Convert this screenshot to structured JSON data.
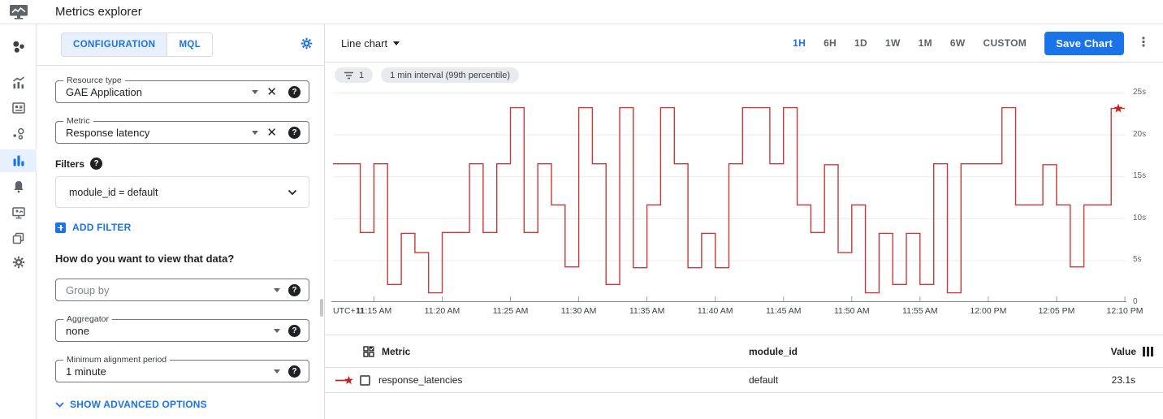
{
  "colors": {
    "accent": "#1a73e8",
    "line": "#c5221f",
    "chip_bg": "#e8eaed",
    "tab_bg": "#e8f0fe"
  },
  "header": {
    "title": "Metrics explorer"
  },
  "sidebar": {
    "icons": [
      "monitoring-overview-icon",
      "metrics-chart-icon",
      "dashboards-icon",
      "services-icon",
      "metrics-explorer-icon",
      "alerting-bell-icon",
      "uptime-monitor-icon",
      "groups-icon",
      "settings-gear-icon"
    ],
    "selected": "metrics-explorer-icon"
  },
  "config_panel": {
    "tabs": [
      {
        "label": "CONFIGURATION",
        "active": true
      },
      {
        "label": "MQL",
        "active": false
      }
    ],
    "resource_type": {
      "label": "Resource type",
      "value": "GAE Application"
    },
    "metric": {
      "label": "Metric",
      "value": "Response latency"
    },
    "filters_label": "Filters",
    "filter_value": "module_id = default",
    "add_filter_label": "ADD FILTER",
    "view_question": "How do you want to view that data?",
    "group_by": {
      "placeholder": "Group by"
    },
    "aggregator": {
      "label": "Aggregator",
      "value": "none"
    },
    "min_alignment": {
      "label": "Minimum alignment period",
      "value": "1 minute"
    },
    "advanced_label": "SHOW ADVANCED OPTIONS"
  },
  "toolbar": {
    "chart_type_label": "Line chart",
    "time_ranges": [
      {
        "label": "1H",
        "active": true
      },
      {
        "label": "6H",
        "active": false
      },
      {
        "label": "1D",
        "active": false
      },
      {
        "label": "1W",
        "active": false
      },
      {
        "label": "1M",
        "active": false
      },
      {
        "label": "6W",
        "active": false
      },
      {
        "label": "CUSTOM",
        "active": false
      }
    ],
    "save_button": "Save Chart"
  },
  "chips": {
    "filter_count": "1",
    "interval": "1 min interval (99th percentile)"
  },
  "chart_data": {
    "type": "line",
    "step": true,
    "title": "",
    "xlabel": "",
    "ylabel": "",
    "timezone_label": "UTC+11",
    "start_time": "11:12 AM",
    "interval_minutes": 1,
    "ylim": [
      0,
      25
    ],
    "y_tick_labels": [
      "25s",
      "20s",
      "15s",
      "10s",
      "5s",
      "0"
    ],
    "x_tick_labels": [
      "11:15 AM",
      "11:20 AM",
      "11:25 AM",
      "11:30 AM",
      "11:35 AM",
      "11:40 AM",
      "11:45 AM",
      "11:50 AM",
      "11:55 AM",
      "12:00 PM",
      "12:05 PM",
      "12:10 PM"
    ],
    "x_tick_offsets_min": [
      3,
      8,
      13,
      18,
      23,
      28,
      33,
      38,
      43,
      48,
      53,
      58
    ],
    "grid": true,
    "legend_position": "table-below",
    "end_marker": "star",
    "series": [
      {
        "name": "response_latencies",
        "color": "#c5221f",
        "unit": "s",
        "latest_value": "23.1s",
        "values": [
          16.5,
          16.5,
          8.3,
          16.5,
          2.1,
          8.2,
          5.9,
          1.1,
          8.3,
          8.3,
          16.5,
          8.3,
          16.5,
          23.2,
          8.3,
          16.5,
          11.6,
          4.2,
          23.2,
          16.5,
          2.1,
          23.2,
          4.1,
          11.6,
          23.2,
          16.5,
          4.1,
          8.2,
          4.1,
          16.5,
          23.2,
          23.2,
          16.5,
          23.2,
          11.6,
          8.3,
          16.4,
          5.9,
          11.6,
          1.1,
          8.2,
          2.1,
          8.2,
          2.1,
          16.5,
          1.1,
          16.5,
          16.5,
          16.5,
          23.2,
          11.6,
          11.6,
          16.4,
          11.6,
          4.2,
          11.6,
          11.6,
          23.1,
          23.1
        ]
      }
    ]
  },
  "table": {
    "headers": {
      "metric": "Metric",
      "module_id": "module_id",
      "value": "Value"
    },
    "rows": [
      {
        "metric": "response_latencies",
        "module_id": "default",
        "value": "23.1s"
      }
    ]
  }
}
